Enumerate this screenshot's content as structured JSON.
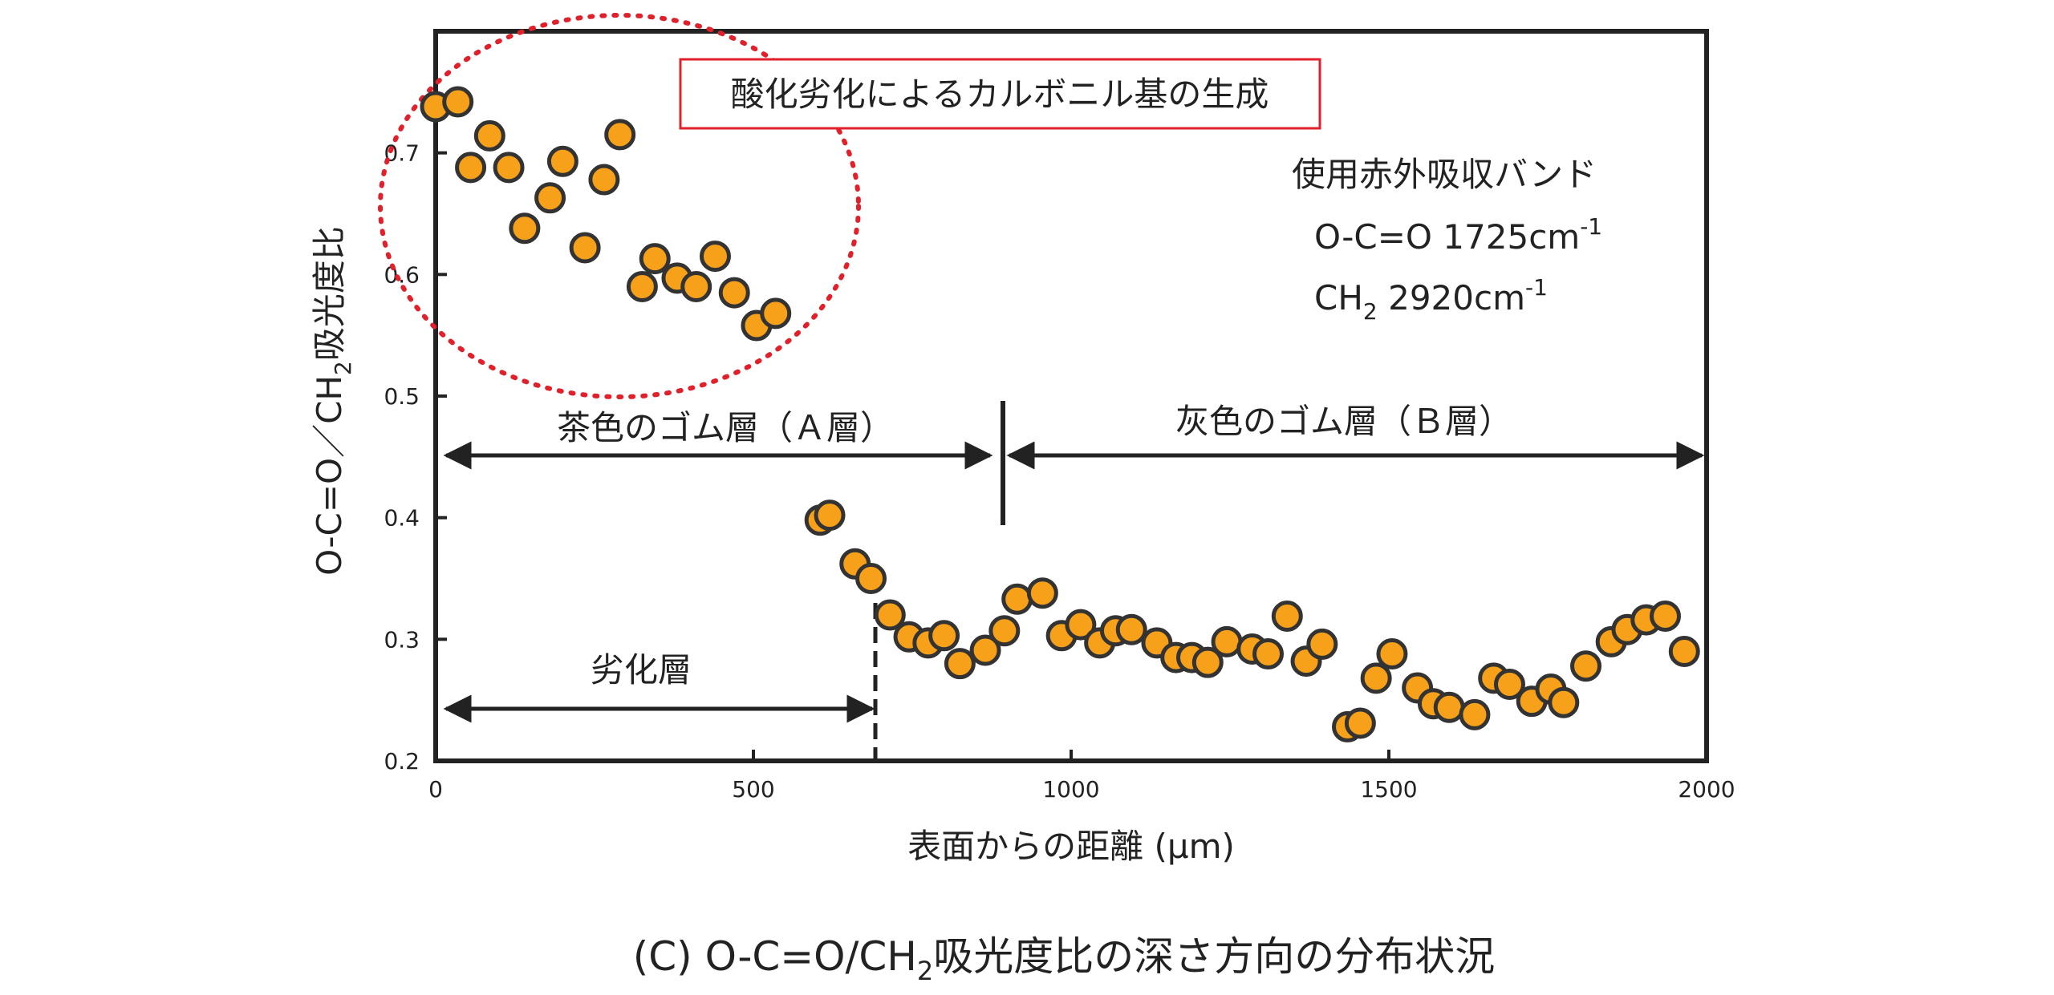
{
  "chart_data": {
    "type": "scatter",
    "caption_parts": {
      "pre": "(C) O-C=O/CH",
      "sub": "2",
      "post": "吸光度比の深さ方向の分布状況"
    },
    "xlabel": "表面からの距離 (μm)",
    "ylabel_parts": {
      "pre": "O-C=O／CH",
      "sub": "2",
      "post": "吸光度比"
    },
    "xlim": [
      0,
      2000
    ],
    "ylim": [
      0.2,
      0.8
    ],
    "xticks": [
      0,
      500,
      1000,
      1500,
      2000
    ],
    "yticks": [
      0.2,
      0.3,
      0.4,
      0.5,
      0.6,
      0.7
    ],
    "series": [
      {
        "name": "O-C=O/CH2 absorbance ratio",
        "color": "#F7A11A",
        "edge_color": "#333333",
        "x": [
          0,
          35,
          55,
          85,
          115,
          140,
          180,
          200,
          235,
          265,
          290,
          325,
          345,
          380,
          410,
          440,
          470,
          505,
          535,
          605,
          620,
          660,
          685,
          715,
          745,
          775,
          800,
          825,
          865,
          895,
          915,
          955,
          985,
          1015,
          1045,
          1070,
          1095,
          1135,
          1165,
          1190,
          1215,
          1245,
          1285,
          1310,
          1340,
          1370,
          1395,
          1435,
          1455,
          1480,
          1505,
          1545,
          1570,
          1595,
          1635,
          1665,
          1690,
          1725,
          1755,
          1775,
          1810,
          1850,
          1875,
          1905,
          1935,
          1965
        ],
        "y": [
          0.738,
          0.742,
          0.688,
          0.714,
          0.688,
          0.638,
          0.663,
          0.693,
          0.622,
          0.678,
          0.715,
          0.59,
          0.613,
          0.597,
          0.59,
          0.615,
          0.585,
          0.558,
          0.568,
          0.398,
          0.402,
          0.362,
          0.35,
          0.32,
          0.302,
          0.297,
          0.303,
          0.28,
          0.291,
          0.307,
          0.333,
          0.338,
          0.303,
          0.312,
          0.297,
          0.307,
          0.308,
          0.297,
          0.285,
          0.285,
          0.281,
          0.298,
          0.292,
          0.288,
          0.319,
          0.282,
          0.296,
          0.228,
          0.231,
          0.268,
          0.288,
          0.26,
          0.247,
          0.244,
          0.238,
          0.268,
          0.263,
          0.249,
          0.259,
          0.248,
          0.278,
          0.298,
          0.308,
          0.316,
          0.319,
          0.29
        ]
      }
    ],
    "annotations": {
      "oxidation_label": "酸化劣化によるカルボニル基の生成",
      "band_title": "使用赤外吸収バンド",
      "band1": {
        "label": "O-C=O 1725cm",
        "sup": "-1"
      },
      "band2": {
        "pre": "CH",
        "sub": "2",
        "post": " 2920cm",
        "sup": "-1"
      },
      "layer_a": {
        "label": "茶色のゴム層（Ａ層）",
        "x_start": 0,
        "x_end": 880
      },
      "layer_b": {
        "label": "灰色のゴム層（Ｂ層）",
        "x_start": 880,
        "x_end": 2000
      },
      "degraded": {
        "label": "劣化層",
        "x_start": 0,
        "x_end": 690
      }
    },
    "colors": {
      "highlight_circle": "#E0212B",
      "label_box": "#E0212B",
      "axis": "#222222"
    }
  }
}
